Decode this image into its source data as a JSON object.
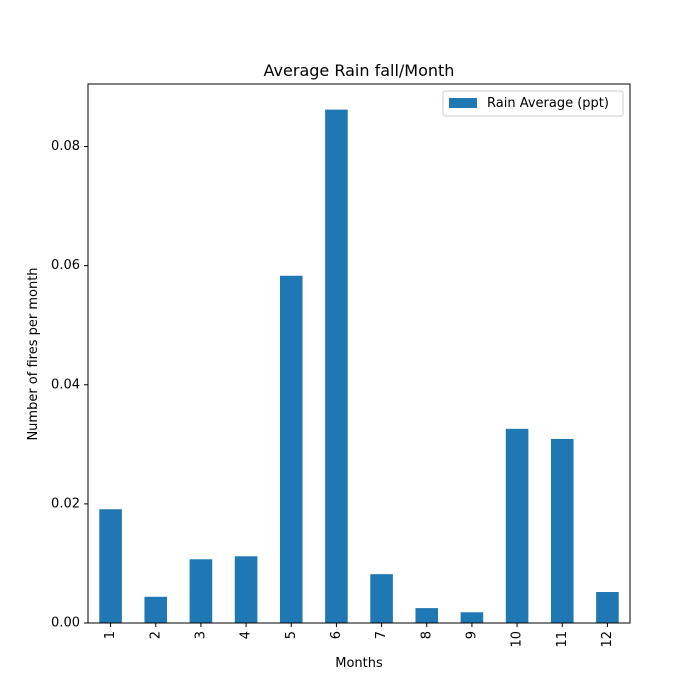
{
  "chart_data": {
    "type": "bar",
    "title": "Average Rain fall/Month",
    "xlabel": "Months",
    "ylabel": "Number of fires per month",
    "categories": [
      "1",
      "2",
      "3",
      "4",
      "5",
      "6",
      "7",
      "8",
      "9",
      "10",
      "11",
      "12"
    ],
    "series": [
      {
        "name": "Rain Average (ppt)",
        "color": "#1f77b4",
        "values": [
          0.0191,
          0.0044,
          0.0107,
          0.0112,
          0.0583,
          0.0862,
          0.0082,
          0.0025,
          0.0018,
          0.0326,
          0.0309,
          0.0052
        ]
      }
    ],
    "ylim": [
      0,
      0.0905
    ],
    "yticks": [
      "0.00",
      "0.02",
      "0.04",
      "0.06",
      "0.08"
    ],
    "ytick_values": [
      0,
      0.02,
      0.04,
      0.06,
      0.08
    ],
    "legend_position": "top-right",
    "grid": false
  }
}
